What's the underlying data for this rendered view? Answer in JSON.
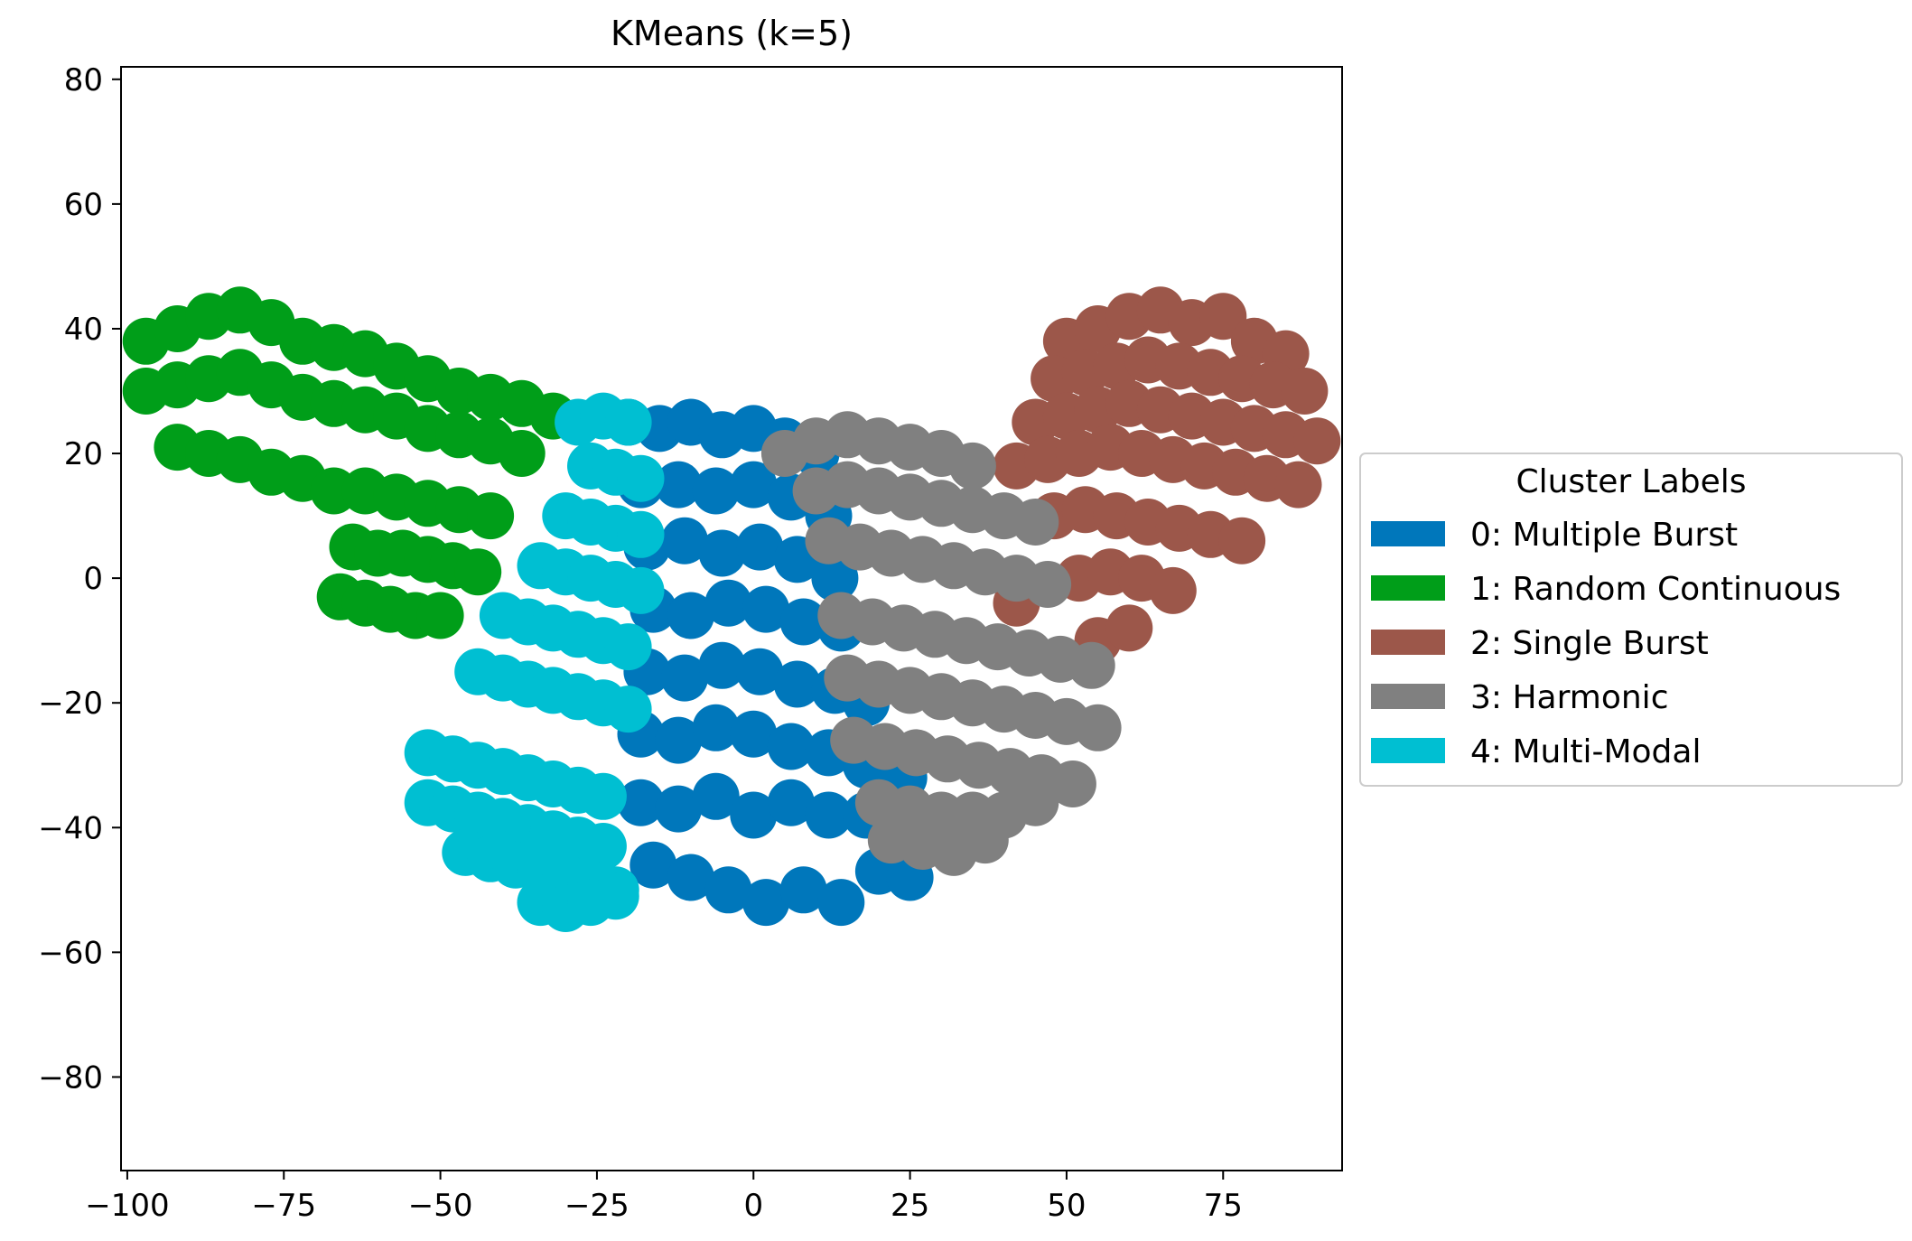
{
  "chart_data": {
    "type": "scatter",
    "title": "KMeans (k=5)",
    "xlabel": "",
    "ylabel": "",
    "xlim": [
      -101,
      94
    ],
    "ylim": [
      -95,
      82
    ],
    "x_ticks": [
      -100,
      -75,
      -50,
      -25,
      0,
      25,
      50,
      75
    ],
    "y_ticks": [
      80,
      60,
      40,
      20,
      0,
      -20,
      -40,
      -60,
      -80
    ],
    "tick_label_format": "unicode-minus",
    "grid": false,
    "legend": {
      "title": "Cluster Labels",
      "placement": "outside-right",
      "entries": [
        {
          "label": "0: Multiple Burst",
          "color": "#0077bb"
        },
        {
          "label": "1: Random Continuous",
          "color": "#009e19"
        },
        {
          "label": "2: Single Burst",
          "color": "#9c574a"
        },
        {
          "label": "3: Harmonic",
          "color": "#808080"
        },
        {
          "label": "4: Multi-Modal",
          "color": "#00bfd2"
        }
      ]
    },
    "series": [
      {
        "name": "0: Multiple Burst",
        "color": "#0077bb",
        "x": [
          -20,
          -15,
          -10,
          -5,
          0,
          5,
          10,
          -18,
          -12,
          -6,
          0,
          6,
          12,
          -17,
          -11,
          -5,
          1,
          7,
          13,
          -16,
          -10,
          -4,
          2,
          8,
          14,
          -17,
          -11,
          -5,
          1,
          7,
          13,
          18,
          -18,
          -12,
          -6,
          0,
          6,
          12,
          18,
          24,
          -18,
          -12,
          -6,
          0,
          6,
          12,
          18,
          24,
          -16,
          -10,
          -4,
          2,
          8,
          14,
          20,
          25
        ],
        "y": [
          25,
          24,
          25,
          23,
          24,
          22,
          20,
          15,
          15,
          14,
          15,
          13,
          10,
          5,
          6,
          4,
          5,
          3,
          0,
          -5,
          -6,
          -4,
          -5,
          -7,
          -8,
          -15,
          -16,
          -14,
          -15,
          -17,
          -18,
          -20,
          -25,
          -26,
          -24,
          -25,
          -27,
          -28,
          -30,
          -32,
          -36,
          -37,
          -35,
          -38,
          -36,
          -38,
          -38,
          -40,
          -46,
          -48,
          -50,
          -52,
          -50,
          -52,
          -47,
          -48
        ]
      },
      {
        "name": "1: Random Continuous",
        "color": "#009e19",
        "x": [
          -97,
          -92,
          -87,
          -82,
          -77,
          -72,
          -67,
          -62,
          -57,
          -52,
          -47,
          -42,
          -37,
          -32,
          -97,
          -92,
          -87,
          -82,
          -77,
          -72,
          -67,
          -62,
          -57,
          -52,
          -47,
          -42,
          -37,
          -92,
          -87,
          -82,
          -77,
          -72,
          -67,
          -62,
          -57,
          -52,
          -47,
          -42,
          -64,
          -60,
          -56,
          -52,
          -48,
          -44,
          -66,
          -62,
          -58,
          -54,
          -50
        ],
        "y": [
          38,
          40,
          42,
          43,
          41,
          38,
          37,
          36,
          34,
          32,
          30,
          29,
          28,
          26,
          30,
          31,
          32,
          33,
          31,
          29,
          28,
          27,
          26,
          24,
          23,
          22,
          20,
          21,
          20,
          19,
          17,
          16,
          14,
          14,
          13,
          12,
          11,
          10,
          5,
          4,
          4,
          3,
          2,
          1,
          -3,
          -4,
          -5,
          -6,
          -6
        ]
      },
      {
        "name": "2: Single Burst",
        "color": "#9c574a",
        "x": [
          50,
          55,
          60,
          65,
          70,
          75,
          80,
          85,
          48,
          53,
          58,
          63,
          68,
          73,
          78,
          83,
          88,
          45,
          50,
          55,
          60,
          65,
          70,
          75,
          80,
          85,
          90,
          42,
          47,
          52,
          57,
          62,
          67,
          72,
          77,
          82,
          87,
          48,
          53,
          58,
          63,
          68,
          73,
          78,
          52,
          57,
          62,
          67,
          55,
          60,
          42
        ],
        "y": [
          38,
          40,
          42,
          43,
          41,
          42,
          38,
          36,
          32,
          33,
          34,
          35,
          34,
          33,
          32,
          31,
          30,
          25,
          26,
          27,
          28,
          27,
          26,
          25,
          24,
          23,
          22,
          18,
          19,
          20,
          21,
          20,
          19,
          18,
          17,
          16,
          15,
          10,
          11,
          10,
          9,
          8,
          7,
          6,
          0,
          1,
          0,
          -2,
          -10,
          -8,
          -4
        ]
      },
      {
        "name": "3: Harmonic",
        "color": "#808080",
        "x": [
          5,
          10,
          15,
          20,
          25,
          30,
          35,
          10,
          15,
          20,
          25,
          30,
          35,
          40,
          45,
          12,
          17,
          22,
          27,
          32,
          37,
          42,
          47,
          14,
          19,
          24,
          29,
          34,
          39,
          44,
          49,
          54,
          15,
          20,
          25,
          30,
          35,
          40,
          45,
          50,
          55,
          16,
          21,
          26,
          31,
          36,
          41,
          46,
          51,
          20,
          25,
          30,
          35,
          40,
          45,
          22,
          27,
          32,
          37
        ],
        "y": [
          20,
          22,
          23,
          22,
          21,
          20,
          18,
          14,
          15,
          14,
          13,
          12,
          11,
          10,
          9,
          6,
          5,
          4,
          3,
          2,
          1,
          0,
          -1,
          -6,
          -7,
          -8,
          -9,
          -10,
          -11,
          -12,
          -13,
          -14,
          -16,
          -17,
          -18,
          -19,
          -20,
          -21,
          -22,
          -23,
          -24,
          -26,
          -27,
          -28,
          -29,
          -30,
          -31,
          -32,
          -33,
          -36,
          -37,
          -38,
          -38,
          -38,
          -36,
          -42,
          -43,
          -44,
          -42
        ]
      },
      {
        "name": "4: Multi-Modal",
        "color": "#00bfd2",
        "x": [
          -28,
          -24,
          -20,
          -26,
          -22,
          -18,
          -30,
          -26,
          -22,
          -18,
          -34,
          -30,
          -26,
          -22,
          -18,
          -40,
          -36,
          -32,
          -28,
          -24,
          -20,
          -44,
          -40,
          -36,
          -32,
          -28,
          -24,
          -20,
          -52,
          -48,
          -44,
          -40,
          -36,
          -32,
          -28,
          -24,
          -52,
          -48,
          -44,
          -40,
          -36,
          -32,
          -28,
          -24,
          -46,
          -42,
          -38,
          -34,
          -30,
          -26,
          -22,
          -34,
          -30,
          -26,
          -22
        ],
        "y": [
          25,
          26,
          25,
          18,
          17,
          16,
          10,
          9,
          8,
          7,
          2,
          1,
          0,
          -1,
          -2,
          -6,
          -7,
          -8,
          -9,
          -10,
          -11,
          -15,
          -16,
          -17,
          -18,
          -19,
          -20,
          -21,
          -28,
          -29,
          -30,
          -31,
          -32,
          -33,
          -34,
          -35,
          -36,
          -37,
          -38,
          -39,
          -40,
          -41,
          -42,
          -43,
          -44,
          -45,
          -46,
          -47,
          -48,
          -49,
          -50,
          -52,
          -53,
          -52,
          -51
        ]
      }
    ]
  }
}
